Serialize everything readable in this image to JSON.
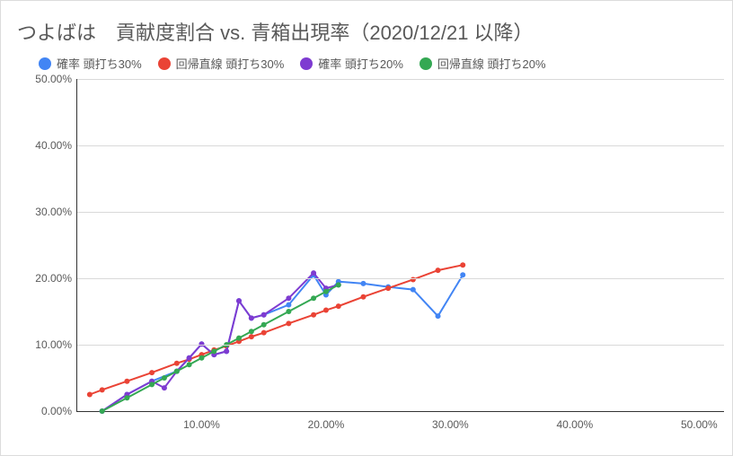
{
  "title": "つよばは　貢献度割合 vs. 青箱出現率（2020/12/21 以降）",
  "legend": [
    {
      "label": "確率 頭打ち30%",
      "color": "#4285f4"
    },
    {
      "label": "回帰直線 頭打ち30%",
      "color": "#ea4335"
    },
    {
      "label": "確率 頭打ち20%",
      "color": "#7e3bd1"
    },
    {
      "label": "回帰直線 頭打ち20%",
      "color": "#34a853"
    }
  ],
  "chart": {
    "type": "line",
    "xlim": [
      0,
      52
    ],
    "ylim": [
      0,
      50
    ],
    "ytick_step": 10,
    "xticks": [
      10,
      20,
      30,
      40,
      50
    ],
    "ytick_suffix": ".00%",
    "xtick_suffix": ".00%",
    "background_color": "#ffffff",
    "grid_color": "#d9d9d9",
    "axis_color": "#333333",
    "tick_fontsize": 12,
    "title_fontsize": 22,
    "marker_radius": 3.0,
    "line_width": 2,
    "series": [
      {
        "name": "確率 頭打ち30%",
        "color": "#4285f4",
        "points": [
          [
            2,
            0.0
          ],
          [
            4,
            2.5
          ],
          [
            6,
            4.5
          ],
          [
            8,
            6.0
          ],
          [
            9,
            8.0
          ],
          [
            10,
            10.1
          ],
          [
            11,
            8.5
          ],
          [
            12,
            9.0
          ],
          [
            13,
            16.6
          ],
          [
            14,
            14.0
          ],
          [
            15,
            14.5
          ],
          [
            17,
            16.0
          ],
          [
            19,
            20.5
          ],
          [
            20,
            17.5
          ],
          [
            21,
            19.5
          ],
          [
            23,
            19.2
          ],
          [
            25,
            18.7
          ],
          [
            27,
            18.3
          ],
          [
            29,
            14.3
          ],
          [
            31,
            20.5
          ]
        ]
      },
      {
        "name": "回帰直線 頭打ち30%",
        "color": "#ea4335",
        "points": [
          [
            1,
            2.5
          ],
          [
            2,
            3.2
          ],
          [
            4,
            4.5
          ],
          [
            6,
            5.8
          ],
          [
            8,
            7.2
          ],
          [
            9,
            7.8
          ],
          [
            10,
            8.5
          ],
          [
            11,
            9.2
          ],
          [
            12,
            9.8
          ],
          [
            13,
            10.5
          ],
          [
            14,
            11.2
          ],
          [
            15,
            11.8
          ],
          [
            17,
            13.2
          ],
          [
            19,
            14.5
          ],
          [
            20,
            15.2
          ],
          [
            21,
            15.8
          ],
          [
            23,
            17.2
          ],
          [
            25,
            18.5
          ],
          [
            27,
            19.8
          ],
          [
            29,
            21.2
          ],
          [
            31,
            22.0
          ]
        ]
      },
      {
        "name": "確率 頭打ち20%",
        "color": "#7e3bd1",
        "points": [
          [
            2,
            0.0
          ],
          [
            4,
            2.5
          ],
          [
            6,
            4.5
          ],
          [
            7,
            3.5
          ],
          [
            8,
            6.0
          ],
          [
            9,
            8.0
          ],
          [
            10,
            10.1
          ],
          [
            11,
            8.5
          ],
          [
            12,
            9.0
          ],
          [
            13,
            16.6
          ],
          [
            14,
            14.0
          ],
          [
            15,
            14.5
          ],
          [
            17,
            17.0
          ],
          [
            19,
            20.8
          ],
          [
            20,
            18.5
          ],
          [
            21,
            19.0
          ]
        ]
      },
      {
        "name": "回帰直線 頭打ち20%",
        "color": "#34a853",
        "points": [
          [
            2,
            0.0
          ],
          [
            4,
            2.0
          ],
          [
            6,
            4.0
          ],
          [
            7,
            5.0
          ],
          [
            8,
            6.0
          ],
          [
            9,
            7.0
          ],
          [
            10,
            8.0
          ],
          [
            11,
            9.0
          ],
          [
            12,
            10.0
          ],
          [
            13,
            11.0
          ],
          [
            14,
            12.0
          ],
          [
            15,
            13.0
          ],
          [
            17,
            15.0
          ],
          [
            19,
            17.0
          ],
          [
            20,
            18.0
          ],
          [
            21,
            19.0
          ]
        ]
      }
    ]
  }
}
